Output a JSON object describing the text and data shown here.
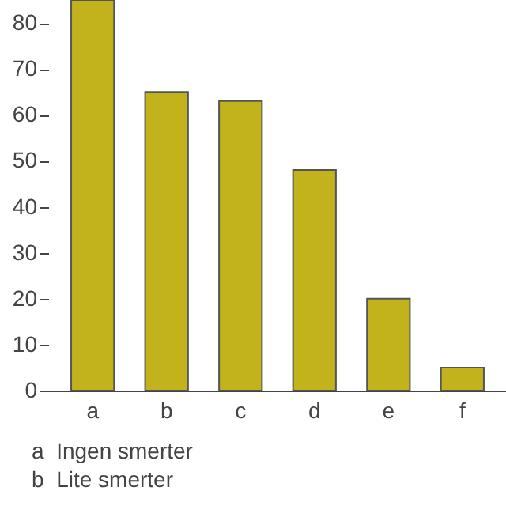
{
  "chart_data": {
    "type": "bar",
    "categories": [
      "a",
      "b",
      "c",
      "d",
      "e",
      "f"
    ],
    "values": [
      85,
      65,
      63,
      48,
      20,
      5
    ],
    "color": "#c2b31c",
    "ylim": [
      0,
      85
    ],
    "yticks": [
      0,
      10,
      20,
      30,
      40,
      50,
      60,
      70,
      80
    ],
    "grid": false,
    "annotations": [
      "a  Ingen smerter",
      "b  Lite smerter"
    ]
  }
}
